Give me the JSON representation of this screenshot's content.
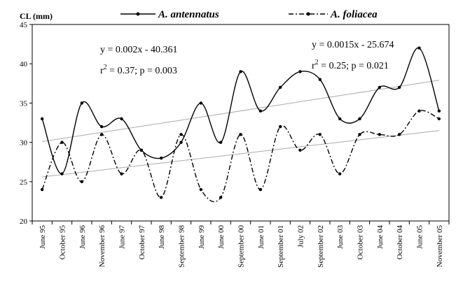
{
  "chart_data": {
    "type": "line",
    "ylabel": "CL (mm)",
    "xlabel": "",
    "ylim": [
      20,
      45
    ],
    "yticks": [
      20,
      25,
      30,
      35,
      40,
      45
    ],
    "categories": [
      "June 95",
      "October 95",
      "June 96",
      "November 96",
      "June 97",
      "October 97",
      "June 98",
      "September 98",
      "June 99",
      "June 00",
      "September 00",
      "June 01",
      "September 01",
      "July 02",
      "September 02",
      "June 03",
      "October 03",
      "June 04",
      "October 04",
      "June 05",
      "November 05"
    ],
    "series": [
      {
        "name": "A. antennatus",
        "style": "solid",
        "values": [
          33,
          26,
          35,
          32,
          33,
          29,
          28,
          30,
          35,
          30,
          39,
          34,
          37,
          39,
          38,
          33,
          33,
          37,
          37,
          42,
          34
        ],
        "trend": [
          30.1,
          37.9
        ]
      },
      {
        "name": "A. foliacea",
        "style": "dashdot",
        "values": [
          24,
          30,
          25,
          31,
          26,
          29,
          23,
          31,
          24,
          23,
          31,
          24,
          32,
          29,
          31,
          26,
          31,
          31,
          31,
          34,
          33
        ],
        "trend": [
          25.6,
          31.5
        ]
      }
    ],
    "annotations": [
      {
        "line1": "y = 0.002x - 40.361",
        "line2_prefix": "r",
        "line2_exp": "2",
        "line2_suffix": " = 0.37; p = 0.003"
      },
      {
        "line1": "y = 0.0015x - 25.674",
        "line2_prefix": "r",
        "line2_exp": "2",
        "line2_suffix": " = 0.25; p = 0.021"
      }
    ],
    "legend": {
      "placement": "top"
    },
    "grid": false,
    "colors": {
      "line": "#000000",
      "trend": "#aaaaaa"
    }
  }
}
